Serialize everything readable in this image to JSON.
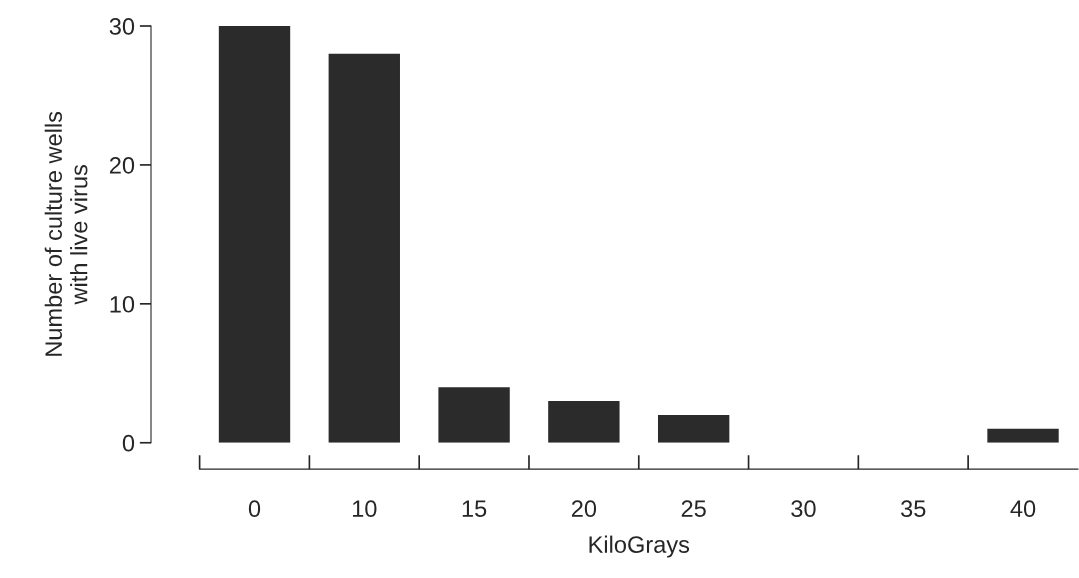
{
  "chart_data": {
    "type": "bar",
    "xlabel": "KiloGrays",
    "ylabel": "Number of culture wells\nwith live virus",
    "categories": [
      "0",
      "10",
      "15",
      "20",
      "25",
      "30",
      "35",
      "40"
    ],
    "values": [
      30,
      28,
      4,
      3,
      2,
      0,
      0,
      1
    ],
    "color": "#2b2b2b",
    "ylim": [
      0,
      30
    ],
    "yticks": [
      0,
      10,
      20,
      30
    ],
    "grid": false
  }
}
